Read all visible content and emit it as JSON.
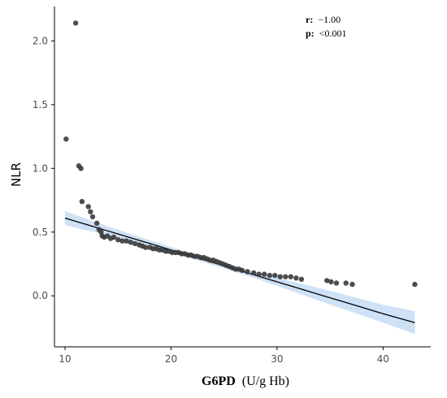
{
  "chart_data": {
    "type": "scatter",
    "title": "",
    "xlabel_bold": "G6PD",
    "xlabel_rest": "(U/g Hb)",
    "ylabel": "NLR",
    "xlim": [
      9.0,
      44.5
    ],
    "ylim": [
      -0.4,
      2.27
    ],
    "xticks": [
      10,
      20,
      30,
      40
    ],
    "yticks": [
      0.0,
      0.5,
      1.0,
      1.5,
      2.0
    ],
    "ytick_labels": [
      "0.0",
      "0.5",
      "1.0",
      "1.5",
      "2.0"
    ],
    "grid": false,
    "annotation": {
      "r_label": "r:",
      "r_value": "−1.00",
      "p_label": "p:",
      "p_value": "<0.001"
    },
    "colors": {
      "points": "#3a3a3a",
      "fit_line": "#000000",
      "band": "#c6dcf3",
      "axis": "#000000"
    },
    "fit": {
      "x": [
        10.0,
        13.0,
        16.0,
        19.0,
        22.0,
        25.0,
        28.0,
        31.0,
        34.0,
        37.0,
        40.0,
        43.0
      ],
      "y": [
        0.61,
        0.535,
        0.46,
        0.385,
        0.31,
        0.235,
        0.16,
        0.085,
        0.01,
        -0.065,
        -0.14,
        -0.21
      ],
      "lower": [
        0.555,
        0.495,
        0.43,
        0.36,
        0.29,
        0.215,
        0.135,
        0.05,
        -0.04,
        -0.125,
        -0.21,
        -0.3
      ],
      "upper": [
        0.665,
        0.575,
        0.49,
        0.41,
        0.33,
        0.255,
        0.185,
        0.12,
        0.06,
        -0.005,
        -0.07,
        -0.12
      ]
    },
    "points": [
      {
        "x": 10.1,
        "y": 1.23
      },
      {
        "x": 11.0,
        "y": 2.14
      },
      {
        "x": 11.3,
        "y": 1.02
      },
      {
        "x": 11.5,
        "y": 1.0
      },
      {
        "x": 11.6,
        "y": 0.74
      },
      {
        "x": 12.2,
        "y": 0.7
      },
      {
        "x": 12.4,
        "y": 0.66
      },
      {
        "x": 12.6,
        "y": 0.62
      },
      {
        "x": 13.0,
        "y": 0.57
      },
      {
        "x": 13.2,
        "y": 0.52
      },
      {
        "x": 13.4,
        "y": 0.5
      },
      {
        "x": 13.5,
        "y": 0.47
      },
      {
        "x": 13.7,
        "y": 0.46
      },
      {
        "x": 14.0,
        "y": 0.47
      },
      {
        "x": 14.3,
        "y": 0.45
      },
      {
        "x": 14.6,
        "y": 0.46
      },
      {
        "x": 15.0,
        "y": 0.44
      },
      {
        "x": 15.4,
        "y": 0.43
      },
      {
        "x": 15.8,
        "y": 0.43
      },
      {
        "x": 16.2,
        "y": 0.42
      },
      {
        "x": 16.6,
        "y": 0.41
      },
      {
        "x": 17.0,
        "y": 0.4
      },
      {
        "x": 17.3,
        "y": 0.39
      },
      {
        "x": 17.6,
        "y": 0.38
      },
      {
        "x": 18.0,
        "y": 0.38
      },
      {
        "x": 18.3,
        "y": 0.37
      },
      {
        "x": 18.6,
        "y": 0.37
      },
      {
        "x": 18.9,
        "y": 0.36
      },
      {
        "x": 19.2,
        "y": 0.36
      },
      {
        "x": 19.5,
        "y": 0.35
      },
      {
        "x": 19.8,
        "y": 0.35
      },
      {
        "x": 20.1,
        "y": 0.34
      },
      {
        "x": 20.4,
        "y": 0.34
      },
      {
        "x": 20.7,
        "y": 0.34
      },
      {
        "x": 21.0,
        "y": 0.33
      },
      {
        "x": 21.3,
        "y": 0.33
      },
      {
        "x": 21.6,
        "y": 0.32
      },
      {
        "x": 21.9,
        "y": 0.32
      },
      {
        "x": 22.2,
        "y": 0.31
      },
      {
        "x": 22.5,
        "y": 0.31
      },
      {
        "x": 22.8,
        "y": 0.3
      },
      {
        "x": 23.1,
        "y": 0.3
      },
      {
        "x": 23.4,
        "y": 0.29
      },
      {
        "x": 23.7,
        "y": 0.28
      },
      {
        "x": 24.0,
        "y": 0.28
      },
      {
        "x": 24.3,
        "y": 0.27
      },
      {
        "x": 24.6,
        "y": 0.26
      },
      {
        "x": 24.9,
        "y": 0.25
      },
      {
        "x": 25.2,
        "y": 0.24
      },
      {
        "x": 25.5,
        "y": 0.23
      },
      {
        "x": 25.8,
        "y": 0.22
      },
      {
        "x": 26.1,
        "y": 0.21
      },
      {
        "x": 26.4,
        "y": 0.21
      },
      {
        "x": 26.7,
        "y": 0.2
      },
      {
        "x": 27.2,
        "y": 0.19
      },
      {
        "x": 27.8,
        "y": 0.18
      },
      {
        "x": 28.3,
        "y": 0.17
      },
      {
        "x": 28.8,
        "y": 0.17
      },
      {
        "x": 29.3,
        "y": 0.16
      },
      {
        "x": 29.8,
        "y": 0.16
      },
      {
        "x": 30.3,
        "y": 0.15
      },
      {
        "x": 30.8,
        "y": 0.15
      },
      {
        "x": 31.3,
        "y": 0.15
      },
      {
        "x": 31.8,
        "y": 0.14
      },
      {
        "x": 32.3,
        "y": 0.13
      },
      {
        "x": 34.7,
        "y": 0.12
      },
      {
        "x": 35.1,
        "y": 0.11
      },
      {
        "x": 35.6,
        "y": 0.1
      },
      {
        "x": 36.5,
        "y": 0.1
      },
      {
        "x": 37.1,
        "y": 0.09
      },
      {
        "x": 43.0,
        "y": 0.09
      }
    ]
  }
}
